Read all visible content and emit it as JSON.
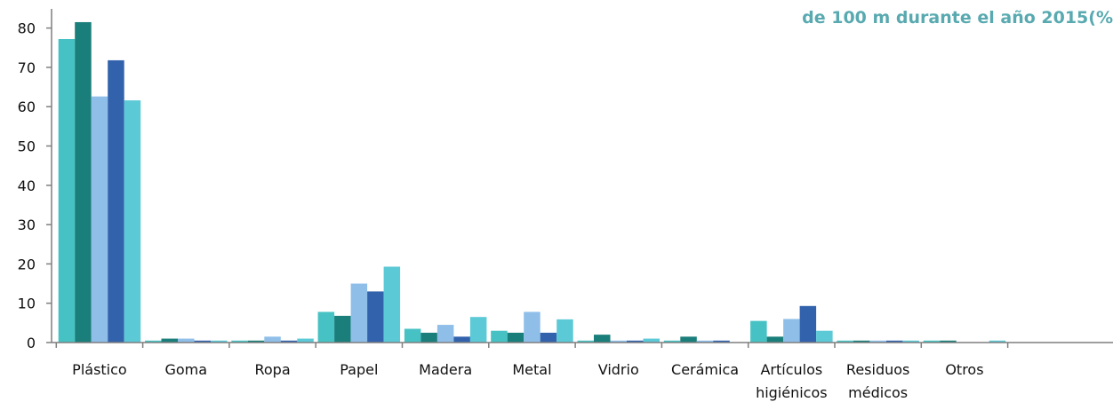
{
  "chart_data": {
    "type": "bar",
    "title_lines": [
      "de 100 m durante el año 2015(%"
    ],
    "categories": [
      [
        "Plástico"
      ],
      [
        "Goma"
      ],
      [
        "Ropa"
      ],
      [
        "Papel"
      ],
      [
        "Madera"
      ],
      [
        "Metal"
      ],
      [
        "Vidrio"
      ],
      [
        "Cerámica"
      ],
      [
        "Artículos",
        "higiénicos"
      ],
      [
        "Residuos",
        "médicos"
      ],
      [
        "Otros"
      ]
    ],
    "series": [
      {
        "color": "#47c2c4",
        "values": [
          77.2,
          0.5,
          0.5,
          7.8,
          3.5,
          3.0,
          0.5,
          0.5,
          5.5,
          0.5,
          0.5
        ]
      },
      {
        "color": "#1a7e7a",
        "values": [
          81.5,
          1.0,
          0.5,
          6.8,
          2.5,
          2.5,
          2.0,
          1.5,
          1.5,
          0.5,
          0.5
        ]
      },
      {
        "color": "#8fbfe9",
        "values": [
          62.6,
          1.0,
          1.5,
          15.0,
          4.5,
          7.8,
          0.5,
          0.5,
          6.0,
          0.5,
          0
        ]
      },
      {
        "color": "#3362ad",
        "values": [
          71.8,
          0.5,
          0.5,
          13.0,
          1.5,
          2.5,
          0.5,
          0.5,
          9.3,
          0.5,
          0
        ]
      },
      {
        "color": "#5bc9d6",
        "values": [
          61.6,
          0.5,
          1.0,
          19.3,
          6.5,
          5.9,
          1.0,
          0,
          3.0,
          0.5,
          0.5
        ]
      }
    ],
    "y_ticks": [
      0,
      10,
      20,
      30,
      40,
      50,
      60,
      70,
      80
    ],
    "ylim": [
      0,
      85
    ],
    "grid": false,
    "legend": "none"
  }
}
